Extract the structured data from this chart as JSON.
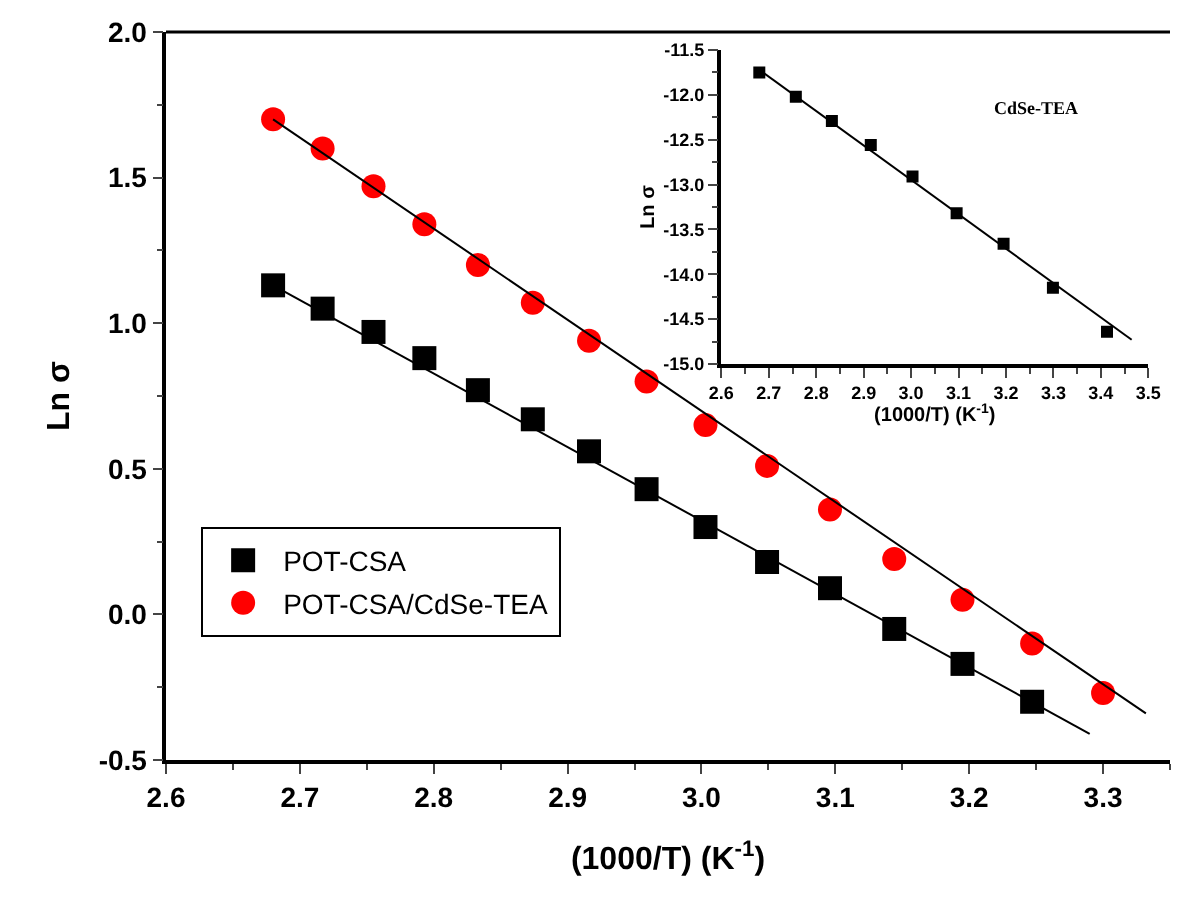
{
  "chart_data": [
    {
      "type": "scatter",
      "xlabel": "(1000/T) (K$^{-1}$)",
      "ylabel": "Ln σ",
      "xlim": [
        2.6,
        3.35
      ],
      "xticks": [
        2.6,
        2.7,
        2.8,
        2.9,
        {
          "value": 3.0,
          "label": "3.0"
        },
        3.1,
        3.2,
        3.3
      ],
      "ylim": [
        -0.5,
        2.0
      ],
      "yticks": [
        -0.5,
        {
          "value": 0.0,
          "label": "0.0"
        },
        0.5,
        {
          "value": 1.0,
          "label": "1.0"
        },
        1.5,
        {
          "value": 2.0,
          "label": "2.0"
        }
      ],
      "legend": "left",
      "series": [
        {
          "name": "POT-CSA",
          "color": "#000000",
          "marker": "square",
          "x": [
            2.68,
            2.717,
            2.755,
            2.793,
            2.833,
            2.874,
            2.916,
            2.959,
            3.003,
            3.049,
            3.096,
            3.144,
            3.195,
            3.247
          ],
          "values": [
            1.13,
            1.05,
            0.97,
            0.88,
            0.77,
            0.67,
            0.56,
            0.43,
            0.3,
            0.18,
            0.09,
            -0.05,
            -0.17,
            -0.3
          ]
        },
        {
          "name": "POT-CSA/CdSe-TEA",
          "color": "#ff0000",
          "marker": "circle",
          "x": [
            2.68,
            2.717,
            2.755,
            2.793,
            2.833,
            2.874,
            2.916,
            2.959,
            3.003,
            3.049,
            3.096,
            3.144,
            3.195,
            3.247,
            3.3
          ],
          "values": [
            1.7,
            1.6,
            1.47,
            1.34,
            1.2,
            1.07,
            0.94,
            0.8,
            0.65,
            0.51,
            0.36,
            0.19,
            0.05,
            -0.1,
            -0.27
          ]
        },
        {
          "type": "line",
          "color": "#000000",
          "x": [
            2.68,
            3.29
          ],
          "values": [
            1.13,
            -0.41
          ]
        },
        {
          "type": "line",
          "color": "#000000",
          "x": [
            2.68,
            3.332
          ],
          "values": [
            1.7,
            -0.34
          ]
        }
      ]
    },
    {
      "type": "scatter",
      "xlabel": "(1000/T) (K$^{-1}$)",
      "ylabel": "Ln σ",
      "xlim": [
        2.6,
        3.5
      ],
      "xticks": [
        2.6,
        2.7,
        2.8,
        2.9,
        {
          "value": 3.0,
          "label": "3.0"
        },
        3.1,
        3.2,
        3.3,
        3.4,
        3.5
      ],
      "ylim": [
        -15.0,
        -11.5
      ],
      "yticks": [
        {
          "value": -15.0,
          "label": "-15.0"
        },
        {
          "value": -14.5,
          "label": "-14.5"
        },
        {
          "value": -14.0,
          "label": "-14.0"
        },
        {
          "value": -13.5,
          "label": "-13.5"
        },
        {
          "value": -13.0,
          "label": "-13.0"
        },
        {
          "value": -12.5,
          "label": "-12.5"
        },
        {
          "value": -12.0,
          "label": "-12.0"
        },
        {
          "value": -11.5,
          "label": "-11.5"
        }
      ],
      "annotations": [
        "CdSe-TEA"
      ],
      "series": [
        {
          "color": "#000000",
          "marker": "square",
          "x": [
            2.68,
            2.757,
            2.833,
            2.915,
            3.003,
            3.096,
            3.195,
            3.299,
            3.413
          ],
          "values": [
            -11.75,
            -12.02,
            -12.29,
            -12.56,
            -12.91,
            -13.32,
            -13.66,
            -14.15,
            -14.64
          ]
        },
        {
          "type": "line",
          "color": "#000000",
          "x": [
            2.68,
            3.465
          ],
          "values": [
            -11.72,
            -14.73
          ]
        }
      ]
    }
  ]
}
